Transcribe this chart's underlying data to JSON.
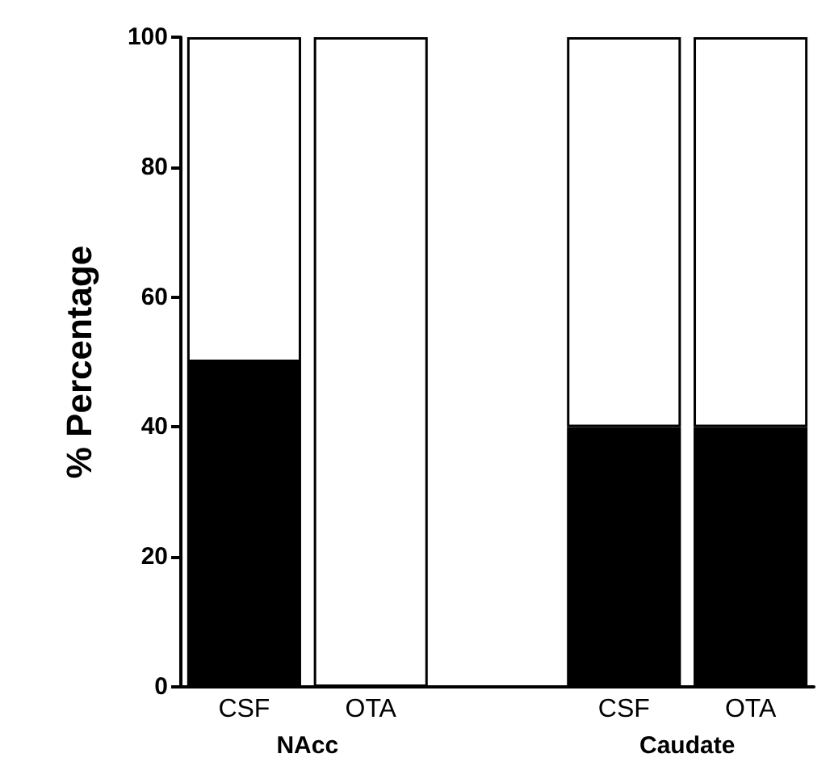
{
  "chart_data": {
    "type": "bar",
    "stacked": true,
    "ylabel": "% Percentage",
    "categories": [
      "CSF",
      "OTA",
      null,
      "CSF",
      "OTA"
    ],
    "series": [
      {
        "color": "#000000",
        "values": [
          50,
          0,
          null,
          40,
          40
        ]
      },
      {
        "color": "#ffffff",
        "values": [
          50,
          100,
          null,
          60,
          60
        ]
      }
    ],
    "annotations": [
      "NAcc",
      "Caudate"
    ],
    "ylim": [
      0,
      100
    ],
    "yticks": [
      0,
      20,
      40,
      60,
      80,
      100
    ],
    "grid": false
  }
}
